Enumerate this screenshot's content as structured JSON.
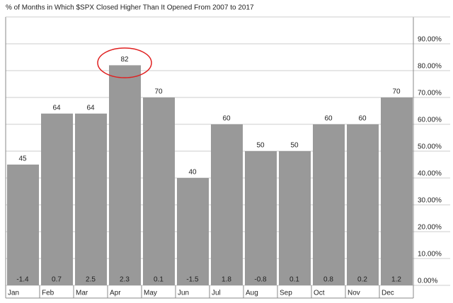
{
  "chart_data": {
    "type": "bar",
    "title": "% of Months in Which $SPX Closed Higher Than It Opened From 2007 to 2017",
    "categories": [
      "Jan",
      "Feb",
      "Mar",
      "Apr",
      "May",
      "Jun",
      "Jul",
      "Aug",
      "Sep",
      "Oct",
      "Nov",
      "Dec"
    ],
    "values": [
      45,
      64,
      64,
      82,
      70,
      40,
      60,
      50,
      50,
      60,
      60,
      70
    ],
    "bottom_labels": [
      -1.4,
      0.7,
      2.5,
      2.3,
      0.1,
      -1.5,
      1.8,
      -0.8,
      0.1,
      0.8,
      0.2,
      1.2
    ],
    "color": "#999999",
    "ylim": [
      0,
      100
    ],
    "yticks": [
      {
        "value": 0,
        "label": "0.00%"
      },
      {
        "value": 10,
        "label": "10.00%"
      },
      {
        "value": 20,
        "label": "20.00%"
      },
      {
        "value": 30,
        "label": "30.00%"
      },
      {
        "value": 40,
        "label": "40.00%"
      },
      {
        "value": 50,
        "label": "50.00%"
      },
      {
        "value": 60,
        "label": "60.00%"
      },
      {
        "value": 70,
        "label": "70.00%"
      },
      {
        "value": 80,
        "label": "80.00%"
      },
      {
        "value": 90,
        "label": "90.00%"
      }
    ],
    "grid": true
  }
}
